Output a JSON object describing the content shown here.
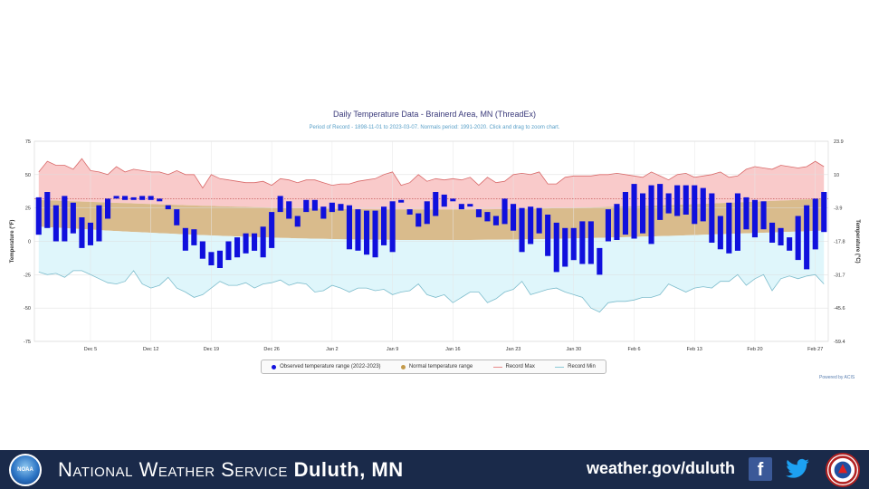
{
  "chart_data": {
    "type": "bar",
    "title": "Daily Temperature Data - Brainerd Area, MN (ThreadEx)",
    "subtitle": "Period of Record - 1898-11-01 to 2023-03-07. Normals period: 1991-2020. Click and drag to zoom chart.",
    "ylabel_left": "Temperature (°F)",
    "ylabel_right": "Temperature (°C)",
    "ylim": [
      -75,
      75
    ],
    "yticks_left": [
      "75",
      "50",
      "25",
      "0",
      "-25",
      "-50",
      "-75"
    ],
    "yticks_right": [
      "23.9",
      "10",
      "-3.9",
      "-17.8",
      "-31.7",
      "-45.6",
      "-59.4"
    ],
    "x_tick_labels": [
      "Dec 5",
      "Dec 12",
      "Dec 19",
      "Dec 26",
      "Jan 2",
      "Jan 9",
      "Jan 16",
      "Jan 23",
      "Jan 30",
      "Feb 6",
      "Feb 13",
      "Feb 20",
      "Feb 27"
    ],
    "first_day": "Nov 29",
    "freezing_line_f": 32,
    "grid": true,
    "series": [
      {
        "name": "Observed temperature range (2022-2023)",
        "color": "#1010dd",
        "highs": [
          33,
          37,
          27,
          34,
          29,
          18,
          14,
          27,
          32,
          34,
          34,
          33,
          34,
          34,
          32,
          27,
          24,
          10,
          9,
          0,
          -8,
          -7,
          0,
          3,
          6,
          6,
          11,
          22,
          34,
          30,
          19,
          31,
          31,
          26,
          29,
          28,
          27,
          24,
          23,
          23,
          26,
          30,
          31,
          24,
          21,
          30,
          37,
          35,
          32,
          28,
          28,
          24,
          22,
          19,
          32,
          28,
          25,
          26,
          25,
          20,
          14,
          10,
          10,
          15,
          15,
          -5,
          24,
          28,
          37,
          43,
          36,
          42,
          43,
          36,
          42,
          42,
          42,
          40,
          36,
          19,
          29,
          36,
          33,
          31,
          30,
          14,
          10,
          3,
          19,
          27,
          32,
          37
        ],
        "lows": [
          5,
          10,
          0,
          0,
          6,
          -5,
          -3,
          0,
          17,
          32,
          31,
          31,
          31,
          31,
          30,
          24,
          12,
          -7,
          -3,
          -13,
          -18,
          -20,
          -14,
          -12,
          -9,
          -7,
          -12,
          -5,
          22,
          17,
          11,
          22,
          23,
          17,
          22,
          23,
          -6,
          -7,
          -10,
          -12,
          -3,
          -8,
          29,
          20,
          11,
          13,
          19,
          26,
          30,
          24,
          26,
          18,
          15,
          12,
          13,
          8,
          -8,
          -2,
          6,
          -11,
          -23,
          -19,
          -14,
          -17,
          -17,
          -25,
          0,
          1,
          5,
          2,
          6,
          -2,
          16,
          21,
          19,
          20,
          13,
          15,
          -1,
          -6,
          -9,
          -7,
          9,
          3,
          9,
          -1,
          -3,
          -7,
          -14,
          -21,
          -6,
          7
        ],
        "note": "single-day bars drawn as short dashes where high and low are nearly equal"
      },
      {
        "name": "Normal temperature range",
        "color": "#d4b484",
        "normal_high_start": 31,
        "normal_high_end": 32,
        "normal_high_min": 23,
        "normal_low_start": 11,
        "normal_low_end": 8,
        "normal_low_min": 0
      },
      {
        "name": "Record Max",
        "color": "#e88a8a",
        "values": [
          52,
          60,
          57,
          57,
          54,
          62,
          53,
          52,
          50,
          56,
          52,
          54,
          53,
          52,
          52,
          50,
          53,
          50,
          50,
          40,
          50,
          47,
          46,
          45,
          44,
          44,
          45,
          42,
          47,
          46,
          44,
          46,
          46,
          44,
          42,
          43,
          43,
          45,
          46,
          47,
          50,
          52,
          42,
          44,
          50,
          45,
          47,
          46,
          47,
          46,
          48,
          42,
          48,
          44,
          45,
          50,
          51,
          50,
          52,
          43,
          43,
          48,
          49,
          49,
          49,
          50,
          50,
          51,
          50,
          49,
          48,
          52,
          49,
          46,
          50,
          51,
          48,
          49,
          50,
          52,
          48,
          49,
          54,
          56,
          55,
          54,
          57,
          56,
          55,
          56,
          60,
          56
        ]
      },
      {
        "name": "Record Min",
        "color": "#8ccbd8",
        "values": [
          -23,
          -25,
          -24,
          -27,
          -22,
          -22,
          -25,
          -28,
          -31,
          -32,
          -30,
          -22,
          -32,
          -35,
          -33,
          -27,
          -35,
          -38,
          -42,
          -40,
          -35,
          -30,
          -33,
          -33,
          -31,
          -35,
          -32,
          -31,
          -29,
          -33,
          -31,
          -32,
          -38,
          -37,
          -33,
          -35,
          -38,
          -35,
          -35,
          -37,
          -36,
          -40,
          -38,
          -37,
          -32,
          -40,
          -42,
          -40,
          -46,
          -42,
          -38,
          -38,
          -46,
          -43,
          -38,
          -36,
          -30,
          -40,
          -38,
          -36,
          -35,
          -38,
          -40,
          -42,
          -50,
          -53,
          -46,
          -45,
          -45,
          -44,
          -42,
          -42,
          -40,
          -32,
          -35,
          -38,
          -35,
          -34,
          -35,
          -30,
          -30,
          -25,
          -33,
          -28,
          -25,
          -37,
          -28,
          -26,
          -28,
          -26,
          -25,
          -32
        ]
      }
    ]
  },
  "legend": {
    "observed": "Observed temperature range (2022-2023)",
    "normal": "Normal temperature range",
    "record_max": "Record Max",
    "record_min": "Record Min"
  },
  "powered_by": "Powered by ACIS",
  "footer": {
    "org_prefix": "National Weather Service",
    "office": "Duluth, MN",
    "url": "weather.gov/duluth",
    "noaa_logo_text": "NOAA",
    "icons": [
      "facebook-icon",
      "twitter-icon",
      "nws-seal-icon"
    ],
    "colors": {
      "bar": "#1a2a4a",
      "text": "#ffffff"
    }
  }
}
